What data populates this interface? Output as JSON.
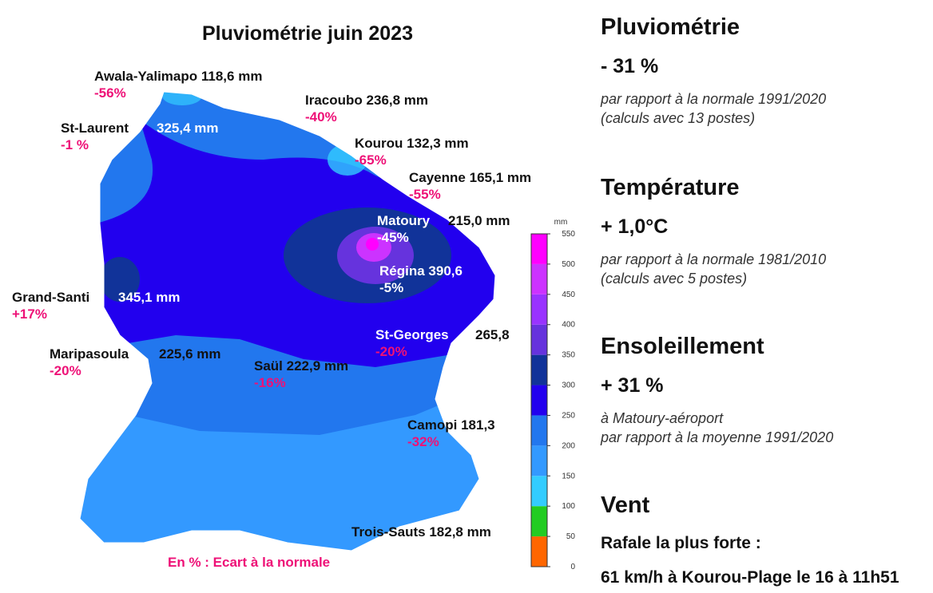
{
  "map": {
    "title": "Pluviométrie juin 2023",
    "legend_note": "En % : Ecart à la normale",
    "colorbar": {
      "unit": "mm",
      "ticks": [
        0,
        50,
        100,
        150,
        200,
        250,
        300,
        350,
        400,
        450,
        500,
        550
      ],
      "colors": [
        "#ff6600",
        "#22cc22",
        "#33ccff",
        "#3399ff",
        "#2277ee",
        "#2200ee",
        "#113399",
        "#6633dd",
        "#9933ff",
        "#cc33ff",
        "#ff00ff"
      ]
    },
    "stations": [
      {
        "name": "Awala-Yalimapo",
        "value": "118,6 mm",
        "deviation": "-56%"
      },
      {
        "name": "Iracoubo",
        "value": "236,8 mm",
        "deviation": "-40%"
      },
      {
        "name": "St-Laurent",
        "value": "325,4 mm",
        "deviation": "-1 %"
      },
      {
        "name": "Kourou",
        "value": "132,3 mm",
        "deviation": "-65%"
      },
      {
        "name": "Cayenne",
        "value": "165,1 mm",
        "deviation": "-55%"
      },
      {
        "name": "Matoury",
        "value": "215,0 mm",
        "deviation": "-45%"
      },
      {
        "name": "Régina",
        "value": "390,6",
        "deviation": "-5%"
      },
      {
        "name": "Grand-Santi",
        "value": "345,1 mm",
        "deviation": "+17%"
      },
      {
        "name": "St-Georges",
        "value": "265,8",
        "deviation": "-20%"
      },
      {
        "name": "Maripasoula",
        "value": "225,6 mm",
        "deviation": "-20%"
      },
      {
        "name": "Saül",
        "value": "222,9 mm",
        "deviation": "-16%"
      },
      {
        "name": "Camopi",
        "value": "181,3",
        "deviation": "-32%"
      },
      {
        "name": "Trois-Sauts",
        "value": "182,8 mm"
      }
    ]
  },
  "panel": {
    "sections": [
      {
        "title": "Pluviométrie",
        "value": "- 31 %",
        "notes": [
          "par rapport à la normale 1991/2020",
          "(calculs avec 13 postes)"
        ]
      },
      {
        "title": "Température",
        "value": "+ 1,0°C",
        "notes": [
          "par rapport à la normale 1981/2010",
          "(calculs avec 5 postes)"
        ]
      },
      {
        "title": "Ensoleillement",
        "value": "+ 31 %",
        "notes": [
          "à Matoury-aéroport",
          "par rapport à la moyenne 1991/2020"
        ]
      },
      {
        "title": "Vent",
        "lines": [
          "Rafale la plus forte :",
          "61 km/h à Kourou-Plage le 16 à 11h51"
        ]
      }
    ]
  }
}
